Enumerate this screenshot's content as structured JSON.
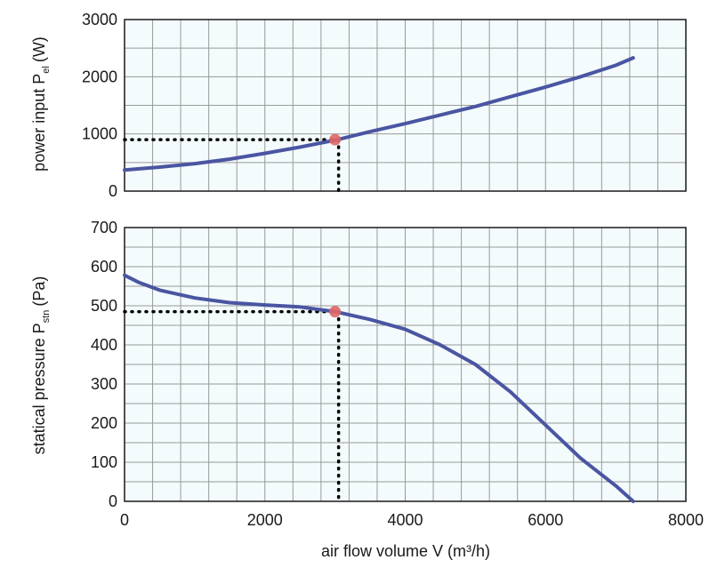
{
  "chart_data": [
    {
      "type": "line",
      "ylabel": "power input P",
      "ylabel_sub": "el",
      "ylabel_unit": "(W)",
      "xlim": [
        0,
        8000
      ],
      "ylim": [
        0,
        3000
      ],
      "x_ticks": [
        0,
        2000,
        4000,
        6000,
        8000
      ],
      "y_ticks": [
        "0",
        "1000",
        "2000",
        "3000"
      ],
      "grid": true,
      "series": [
        {
          "color": "#4a55a2",
          "x": [
            0,
            500,
            1000,
            1500,
            2000,
            2500,
            3000,
            3500,
            4000,
            4500,
            5000,
            5500,
            6000,
            6500,
            7000,
            7250
          ],
          "y": [
            370,
            420,
            480,
            560,
            660,
            770,
            890,
            1040,
            1180,
            1330,
            1480,
            1650,
            1820,
            2000,
            2200,
            2330
          ]
        }
      ],
      "operating_point": {
        "x": 3000,
        "y": 900,
        "color": "#e06666"
      }
    },
    {
      "type": "line",
      "xlabel": "air flow volume V (m³/h)",
      "ylabel": "statical pressure P",
      "ylabel_sub": "stn",
      "ylabel_unit": "(Pa)",
      "xlim": [
        0,
        8000
      ],
      "ylim": [
        0,
        700
      ],
      "x_ticks": [
        "0",
        "2000",
        "4000",
        "6000",
        "8000"
      ],
      "y_ticks": [
        "0",
        "100",
        "200",
        "300",
        "400",
        "500",
        "600",
        "700"
      ],
      "grid": true,
      "series": [
        {
          "color": "#4a55a2",
          "x": [
            0,
            200,
            500,
            1000,
            1500,
            2000,
            2500,
            3000,
            3500,
            4000,
            4500,
            5000,
            5500,
            6000,
            6500,
            7000,
            7250
          ],
          "y": [
            578,
            560,
            540,
            520,
            508,
            502,
            497,
            485,
            465,
            440,
            400,
            350,
            280,
            195,
            110,
            40,
            0
          ]
        }
      ],
      "operating_point": {
        "x": 3000,
        "y": 485,
        "color": "#e06666"
      }
    }
  ]
}
